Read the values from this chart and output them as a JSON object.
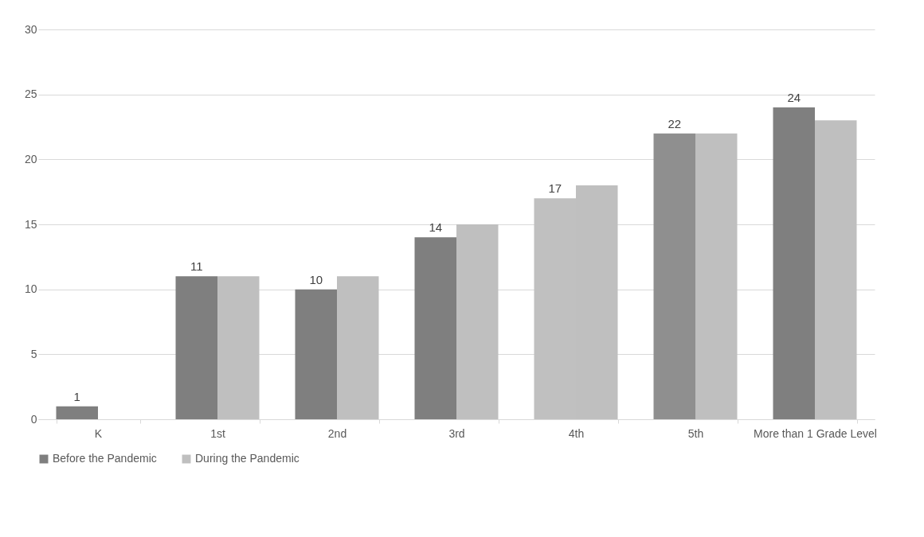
{
  "chart_data": {
    "type": "bar",
    "categories": [
      "K",
      "1st",
      "2nd",
      "3rd",
      "4th",
      "5th",
      "More than 1 Grade Level"
    ],
    "series": [
      {
        "name": "Before the Pandemic",
        "color": "#7f7f7f",
        "colors": [
          "#7f7f7f",
          "#7f7f7f",
          "#7f7f7f",
          "#7f7f7f",
          "#c0c0c0",
          "#8f8f8f",
          "#7f7f7f"
        ],
        "values": [
          1,
          11,
          10,
          14,
          17,
          22,
          24
        ],
        "value_labels": [
          "1",
          "11",
          "10",
          "14",
          "17",
          "22",
          "24"
        ]
      },
      {
        "name": "During the Pandemic",
        "color": "#bfbfbf",
        "values": [
          0,
          11,
          11,
          15,
          18,
          22,
          23
        ]
      }
    ],
    "ylim": [
      0,
      30
    ],
    "yticks": [
      0,
      5,
      10,
      15,
      20,
      25,
      30
    ],
    "grid": "y",
    "legend": "bottom"
  }
}
